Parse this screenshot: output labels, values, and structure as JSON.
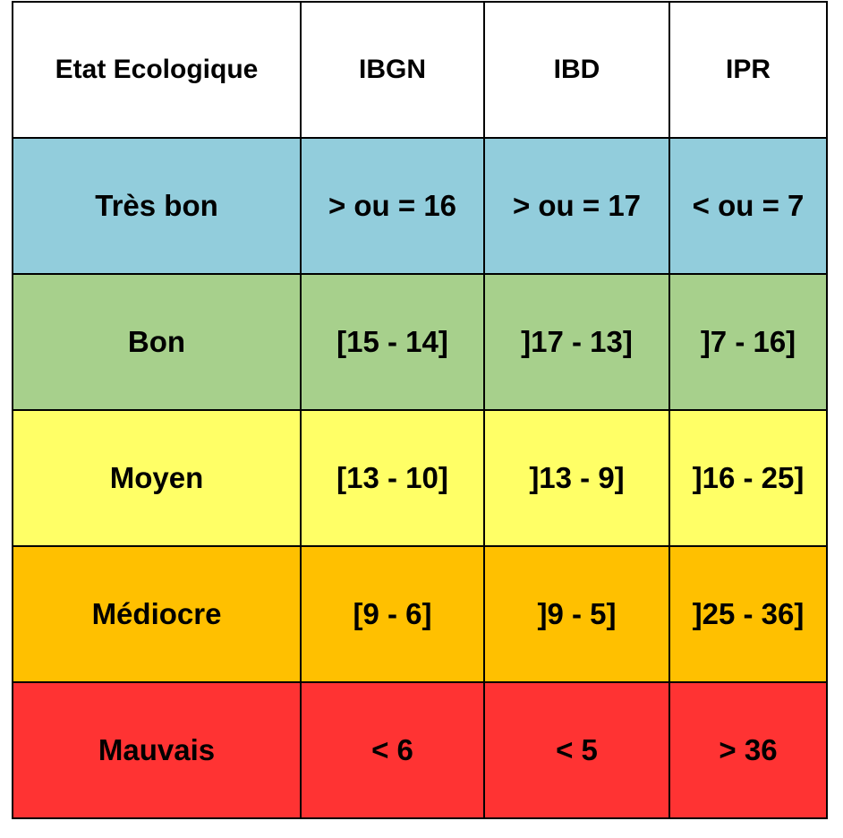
{
  "table": {
    "header": [
      "Etat Ecologique",
      "IBGN",
      "IBD",
      "IPR"
    ],
    "rows": [
      [
        "Très bon",
        "> ou = 16",
        "> ou = 17",
        "< ou = 7"
      ],
      [
        "Bon",
        "[15 - 14]",
        "]17 - 13]",
        "]7 - 16]"
      ],
      [
        "Moyen",
        "[13 - 10]",
        "]13 - 9]",
        "]16 - 25]"
      ],
      [
        "Médiocre",
        "[9 - 6]",
        "]9 - 5]",
        "]25 - 36]"
      ],
      [
        "Mauvais",
        "< 6",
        "< 5",
        "> 36"
      ]
    ]
  }
}
